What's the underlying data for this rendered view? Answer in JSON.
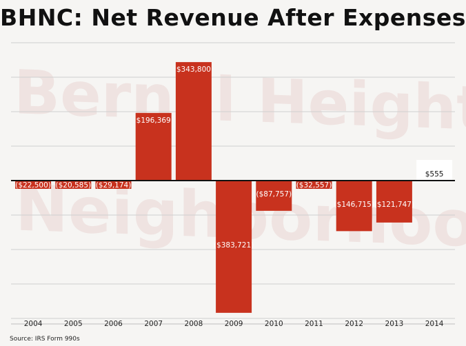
{
  "chart_data": {
    "type": "bar",
    "title": "BHNC: Net Revenue After Expenses",
    "categories": [
      "2004",
      "2005",
      "2006",
      "2007",
      "2008",
      "2009",
      "2010",
      "2011",
      "2012",
      "2013",
      "2014"
    ],
    "values": [
      -22500,
      -20585,
      -29174,
      196369,
      343800,
      -383721,
      -87757,
      -32557,
      -146715,
      -121747,
      555
    ],
    "value_labels": [
      "($22,500)",
      "($20,585)",
      "($29,174)",
      "$196,369",
      "$343,800",
      "($383,721)",
      "($87,757)",
      "($32,557)",
      "($146,715)",
      "($121,747)",
      "$555"
    ],
    "ylim": [
      -400000,
      400000
    ],
    "grid_step": 100000,
    "grid": true,
    "xlabel": "",
    "ylabel": "",
    "bar_color": "#c8321e",
    "source": "Source: IRS Form 990s"
  },
  "watermark": {
    "line1": "Bernal Heights",
    "line2": "Neighborhood Center"
  }
}
